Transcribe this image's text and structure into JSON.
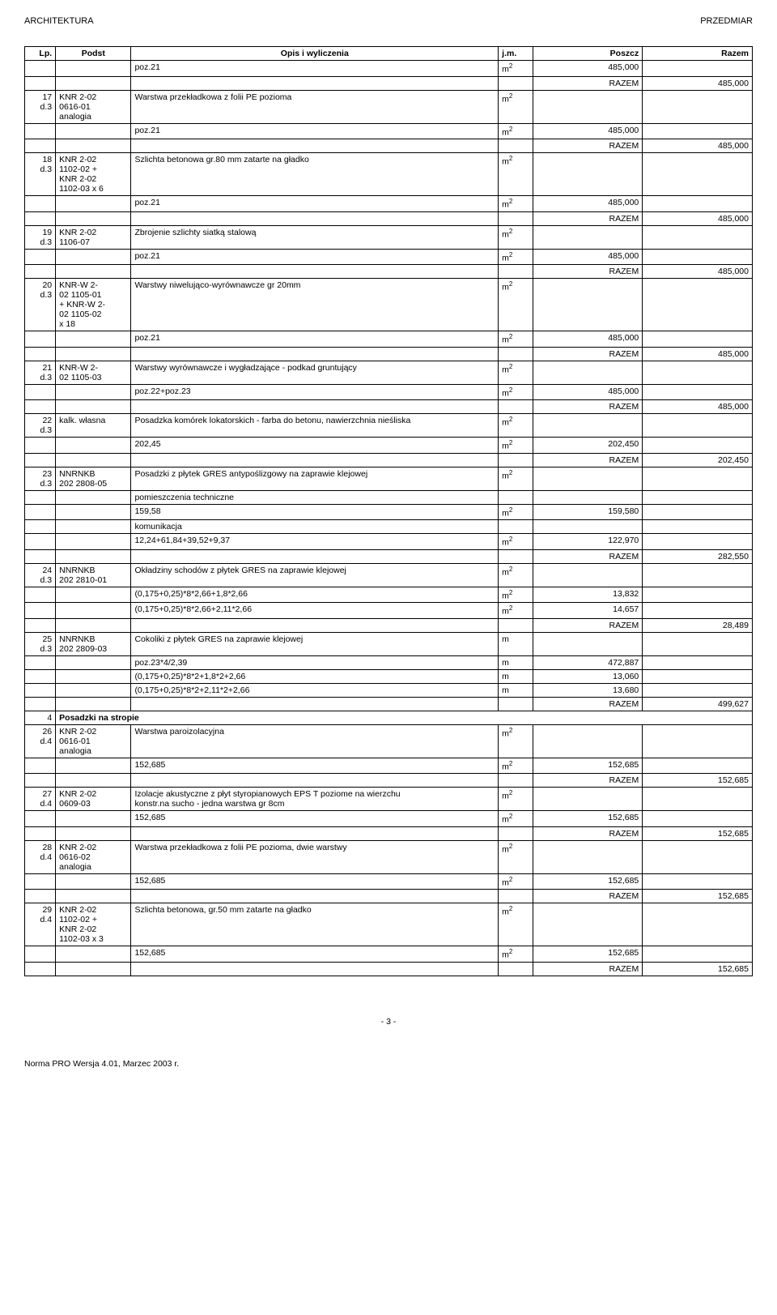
{
  "header": {
    "left": "ARCHITEKTURA",
    "right": "PRZEDMIAR"
  },
  "columns": {
    "lp": "Lp.",
    "podst": "Podst",
    "opis": "Opis i wyliczenia",
    "jm": "j.m.",
    "poszcz": "Poszcz",
    "razem": "Razem"
  },
  "jm": {
    "m2_a": "m",
    "m2_b": "2",
    "m": "m"
  },
  "razem_label": "RAZEM",
  "rows": [
    {
      "lp": "",
      "podst": "",
      "opis": "poz.21",
      "jm": "m2",
      "poszcz": "485,000",
      "razem": ""
    },
    {
      "lp": "",
      "podst": "",
      "opis": "",
      "jm": "",
      "poszcz_text": "RAZEM",
      "razem": "485,000"
    },
    {
      "lp": "17\nd.3",
      "podst": "KNR 2-02\n0616-01\nanalogia",
      "opis": "Warstwa przekładkowa z folii PE pozioma",
      "jm": "m2",
      "poszcz": "",
      "razem": ""
    },
    {
      "lp": "",
      "podst": "",
      "opis": "poz.21",
      "jm": "m2",
      "poszcz": "485,000",
      "razem": ""
    },
    {
      "lp": "",
      "podst": "",
      "opis": "",
      "jm": "",
      "poszcz_text": "RAZEM",
      "razem": "485,000"
    },
    {
      "lp": "18\nd.3",
      "podst": "KNR 2-02\n1102-02 +\nKNR 2-02\n1102-03 x 6",
      "opis": "Szlichta betonowa gr.80 mm zatarte na gładko",
      "jm": "m2",
      "poszcz": "",
      "razem": ""
    },
    {
      "lp": "",
      "podst": "",
      "opis": "poz.21",
      "jm": "m2",
      "poszcz": "485,000",
      "razem": ""
    },
    {
      "lp": "",
      "podst": "",
      "opis": "",
      "jm": "",
      "poszcz_text": "RAZEM",
      "razem": "485,000"
    },
    {
      "lp": "19\nd.3",
      "podst": "KNR 2-02\n1106-07",
      "opis": "Zbrojenie szlichty siatką stalową",
      "jm": "m2",
      "poszcz": "",
      "razem": ""
    },
    {
      "lp": "",
      "podst": "",
      "opis": "poz.21",
      "jm": "m2",
      "poszcz": "485,000",
      "razem": ""
    },
    {
      "lp": "",
      "podst": "",
      "opis": "",
      "jm": "",
      "poszcz_text": "RAZEM",
      "razem": "485,000"
    },
    {
      "lp": "20\nd.3",
      "podst": "KNR-W 2-\n02 1105-01\n+ KNR-W 2-\n02 1105-02\nx 18",
      "opis": "Warstwy niwelująco-wyrównawcze gr 20mm",
      "jm": "m2",
      "poszcz": "",
      "razem": ""
    },
    {
      "lp": "",
      "podst": "",
      "opis": "poz.21",
      "jm": "m2",
      "poszcz": "485,000",
      "razem": ""
    },
    {
      "lp": "",
      "podst": "",
      "opis": "",
      "jm": "",
      "poszcz_text": "RAZEM",
      "razem": "485,000"
    },
    {
      "lp": "21\nd.3",
      "podst": "KNR-W 2-\n02 1105-03",
      "opis": "Warstwy wyrównawcze i wygładzające - podkad gruntujący",
      "jm": "m2",
      "poszcz": "",
      "razem": ""
    },
    {
      "lp": "",
      "podst": "",
      "opis": "poz.22+poz.23",
      "jm": "m2",
      "poszcz": "485,000",
      "razem": ""
    },
    {
      "lp": "",
      "podst": "",
      "opis": "",
      "jm": "",
      "poszcz_text": "RAZEM",
      "razem": "485,000"
    },
    {
      "lp": "22\nd.3",
      "podst": "kalk. własna",
      "opis": "Posadzka komórek lokatorskich - farba do betonu, nawierzchnia nieśliska",
      "jm": "m2",
      "poszcz": "",
      "razem": ""
    },
    {
      "lp": "",
      "podst": "",
      "opis": "202,45",
      "jm": "m2",
      "poszcz": "202,450",
      "razem": ""
    },
    {
      "lp": "",
      "podst": "",
      "opis": "",
      "jm": "",
      "poszcz_text": "RAZEM",
      "razem": "202,450"
    },
    {
      "lp": "23\nd.3",
      "podst": "NNRNKB\n202 2808-05",
      "opis": "Posadzki z płytek GRES antypoślizgowy na zaprawie klejowej",
      "jm": "m2",
      "poszcz": "",
      "razem": ""
    },
    {
      "lp": "",
      "podst": "",
      "opis": "pomieszczenia techniczne",
      "jm": "",
      "poszcz": "",
      "razem": ""
    },
    {
      "lp": "",
      "podst": "",
      "opis": "159,58",
      "jm": "m2",
      "poszcz": "159,580",
      "razem": ""
    },
    {
      "lp": "",
      "podst": "",
      "opis": "komunikacja",
      "jm": "",
      "poszcz": "",
      "razem": ""
    },
    {
      "lp": "",
      "podst": "",
      "opis": "12,24+61,84+39,52+9,37",
      "jm": "m2",
      "poszcz": "122,970",
      "razem": ""
    },
    {
      "lp": "",
      "podst": "",
      "opis": "",
      "jm": "",
      "poszcz_text": "RAZEM",
      "razem": "282,550"
    },
    {
      "lp": "24\nd.3",
      "podst": "NNRNKB\n202 2810-01",
      "opis": "Okładziny schodów z płytek GRES na zaprawie klejowej",
      "jm": "m2",
      "poszcz": "",
      "razem": ""
    },
    {
      "lp": "",
      "podst": "",
      "opis": "(0,175+0,25)*8*2,66+1,8*2,66",
      "jm": "m2",
      "poszcz": "13,832",
      "razem": ""
    },
    {
      "lp": "",
      "podst": "",
      "opis": "(0,175+0,25)*8*2,66+2,11*2,66",
      "jm": "m2",
      "poszcz": "14,657",
      "razem": ""
    },
    {
      "lp": "",
      "podst": "",
      "opis": "",
      "jm": "",
      "poszcz_text": "RAZEM",
      "razem": "28,489"
    },
    {
      "lp": "25\nd.3",
      "podst": "NNRNKB\n202 2809-03",
      "opis": "Cokoliki z płytek GRES na zaprawie klejowej",
      "jm": "m",
      "poszcz": "",
      "razem": ""
    },
    {
      "lp": "",
      "podst": "",
      "opis": "poz.23*4/2,39",
      "jm": "m",
      "poszcz": "472,887",
      "razem": ""
    },
    {
      "lp": "",
      "podst": "",
      "opis": "(0,175+0,25)*8*2+1,8*2+2,66",
      "jm": "m",
      "poszcz": "13,060",
      "razem": ""
    },
    {
      "lp": "",
      "podst": "",
      "opis": "(0,175+0,25)*8*2+2,11*2+2,66",
      "jm": "m",
      "poszcz": "13,680",
      "razem": ""
    },
    {
      "lp": "",
      "podst": "",
      "opis": "",
      "jm": "",
      "poszcz_text": "RAZEM",
      "razem": "499,627"
    },
    {
      "lp": "4",
      "podst_span": "Posadzki na stropie"
    },
    {
      "lp": "26\nd.4",
      "podst": "KNR 2-02\n0616-01\nanalogia",
      "opis": "Warstwa paroizolacyjna",
      "jm": "m2",
      "poszcz": "",
      "razem": ""
    },
    {
      "lp": "",
      "podst": "",
      "opis": "152,685",
      "jm": "m2",
      "poszcz": "152,685",
      "razem": ""
    },
    {
      "lp": "",
      "podst": "",
      "opis": "",
      "jm": "",
      "poszcz_text": "RAZEM",
      "razem": "152,685"
    },
    {
      "lp": "27\nd.4",
      "podst": "KNR 2-02\n0609-03",
      "opis": "Izolacje akustyczne z płyt styropianowych EPS T poziome na wierzchu\nkonstr.na sucho - jedna warstwa gr 8cm",
      "jm": "m2",
      "poszcz": "",
      "razem": ""
    },
    {
      "lp": "",
      "podst": "",
      "opis": "152,685",
      "jm": "m2",
      "poszcz": "152,685",
      "razem": ""
    },
    {
      "lp": "",
      "podst": "",
      "opis": "",
      "jm": "",
      "poszcz_text": "RAZEM",
      "razem": "152,685"
    },
    {
      "lp": "28\nd.4",
      "podst": "KNR 2-02\n0616-02\nanalogia",
      "opis": "Warstwa przekładkowa z folii PE pozioma, dwie warstwy",
      "jm": "m2",
      "poszcz": "",
      "razem": ""
    },
    {
      "lp": "",
      "podst": "",
      "opis": "152,685",
      "jm": "m2",
      "poszcz": "152,685",
      "razem": ""
    },
    {
      "lp": "",
      "podst": "",
      "opis": "",
      "jm": "",
      "poszcz_text": "RAZEM",
      "razem": "152,685"
    },
    {
      "lp": "29\nd.4",
      "podst": "KNR 2-02\n1102-02 +\nKNR 2-02\n1102-03 x 3",
      "opis": "Szlichta betonowa, gr.50 mm zatarte na gładko",
      "jm": "m2",
      "poszcz": "",
      "razem": ""
    },
    {
      "lp": "",
      "podst": "",
      "opis": "152,685",
      "jm": "m2",
      "poszcz": "152,685",
      "razem": ""
    },
    {
      "lp": "",
      "podst": "",
      "opis": "",
      "jm": "",
      "poszcz_text": "RAZEM",
      "razem": "152,685"
    }
  ],
  "footer": {
    "page": "- 3 -",
    "note": "Norma PRO Wersja 4.01, Marzec 2003 r."
  }
}
